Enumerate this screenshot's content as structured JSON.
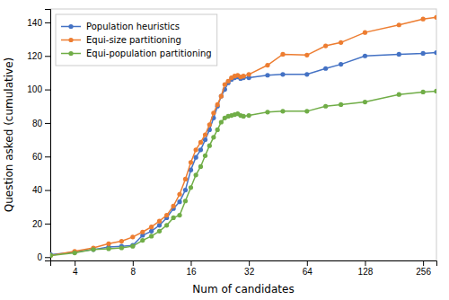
{
  "chart_data": {
    "type": "line",
    "xlabel": "Num of candidates",
    "ylabel": "Question asked (cumulative)",
    "x": [
      3,
      4,
      5,
      6,
      7,
      8,
      9,
      10,
      11,
      12,
      13,
      14,
      15,
      16,
      17,
      18,
      19,
      20,
      21,
      22,
      23,
      24,
      25,
      26,
      27,
      28,
      29,
      30,
      32,
      40,
      48,
      64,
      80,
      96,
      128,
      192,
      256,
      300
    ],
    "series": [
      {
        "name": "Population heuristics",
        "color": "#4472C4",
        "values": [
          1.5,
          3.0,
          4.5,
          6.0,
          6.5,
          7.0,
          13.0,
          15.5,
          19.0,
          23.5,
          29.0,
          33.0,
          40.0,
          52.0,
          59.5,
          64.0,
          70.0,
          76.0,
          83.0,
          90.0,
          96.0,
          100.0,
          104.0,
          106.0,
          107.0,
          107.5,
          106.5,
          107.0,
          107.0,
          108.5,
          109.0,
          109.0,
          112.5,
          115.0,
          120.0,
          121.0,
          121.5,
          122.0
        ]
      },
      {
        "name": "Equi-size partitioning",
        "color": "#ED7D31",
        "values": [
          1.0,
          3.5,
          5.5,
          8.0,
          9.5,
          12.0,
          15.0,
          18.0,
          21.5,
          25.0,
          30.5,
          37.5,
          46.5,
          56.5,
          64.0,
          68.5,
          73.0,
          79.0,
          86.0,
          91.0,
          96.0,
          103.0,
          105.0,
          107.0,
          108.0,
          108.5,
          107.5,
          108.0,
          109.0,
          114.5,
          121.0,
          120.5,
          126.0,
          128.0,
          134.0,
          138.5,
          142.0,
          143.0
        ]
      },
      {
        "name": "Equi-population partitioning",
        "color": "#70AD47",
        "values": [
          1.0,
          2.5,
          4.5,
          5.0,
          5.5,
          6.5,
          10.0,
          12.5,
          15.5,
          19.0,
          23.5,
          25.0,
          33.5,
          41.5,
          49.0,
          54.0,
          60.5,
          66.5,
          71.5,
          76.0,
          80.5,
          83.0,
          84.0,
          84.5,
          85.0,
          85.5,
          84.5,
          84.0,
          84.5,
          86.5,
          87.0,
          87.0,
          90.0,
          91.0,
          92.5,
          97.0,
          98.5,
          99.0
        ]
      }
    ],
    "log": "x",
    "xlim": [
      2.9897,
      300.2457
    ],
    "xticks": [
      4,
      8,
      16,
      32,
      64,
      128,
      256
    ],
    "ylim": [
      -2,
      148
    ],
    "yticks": [
      0,
      20,
      40,
      60,
      80,
      100,
      120,
      140
    ],
    "legend": "upper left",
    "grid": false,
    "marker": "circle",
    "line_style": "solid"
  }
}
